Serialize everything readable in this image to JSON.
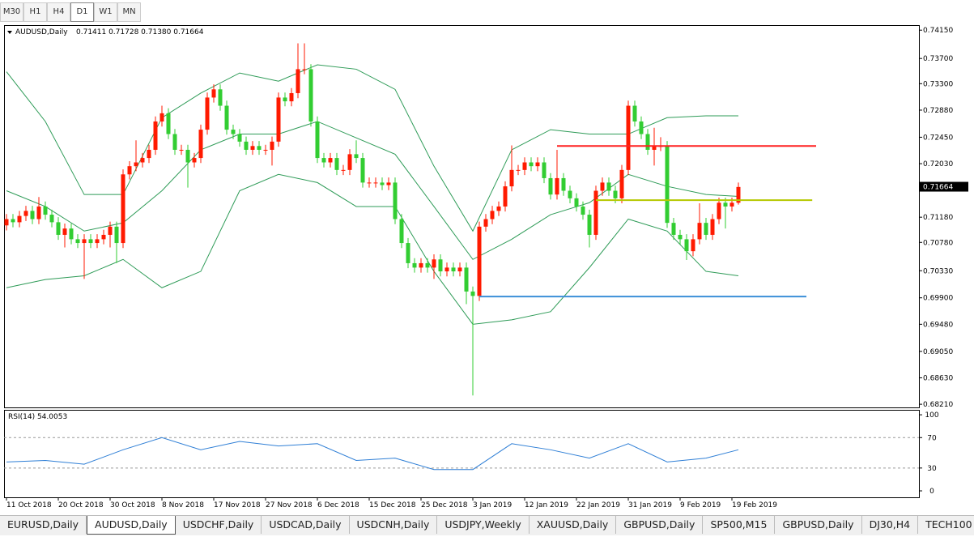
{
  "ui": {
    "timeframes": [
      "M30",
      "H1",
      "H4",
      "D1",
      "W1",
      "MN"
    ],
    "active_timeframe": 3,
    "tabs": [
      "EURUSD,Daily",
      "AUDUSD,Daily",
      "USDCHF,Daily",
      "USDCAD,Daily",
      "USDCNH,Daily",
      "USDJPY,Weekly",
      "XAUUSD,Daily",
      "GBPUSD,Daily",
      "SP500,M15",
      "GBPUSD,Daily",
      "DJ30,H4",
      "TECH100"
    ],
    "active_tab": 1
  },
  "chart_data": {
    "type": "candlestick",
    "title": "AUDUSD,Daily",
    "ohlc_text": "0.71411 0.71728 0.71380 0.71664",
    "up_color": "#ff1a00",
    "down_color": "#32cd32",
    "open": [
      0.7105,
      0.7115,
      0.711,
      0.712,
      0.7128,
      0.7115,
      0.7135,
      0.7122,
      0.711,
      0.709,
      0.71,
      0.7083,
      0.7077,
      0.7083,
      0.7077,
      0.7083,
      0.709,
      0.7103,
      0.7077,
      0.7186,
      0.7199,
      0.7205,
      0.7212,
      0.7225,
      0.727,
      0.7283,
      0.725,
      0.7225,
      0.7225,
      0.7205,
      0.7212,
      0.7257,
      0.7308,
      0.7321,
      0.7295,
      0.7257,
      0.725,
      0.7238,
      0.7225,
      0.7231,
      0.7225,
      0.7225,
      0.7238,
      0.7308,
      0.7302,
      0.7315,
      0.7353,
      0.7353,
      0.727,
      0.7212,
      0.7205,
      0.7212,
      0.7193,
      0.7193,
      0.7218,
      0.7212,
      0.7173,
      0.7173,
      0.7173,
      0.7169,
      0.7173,
      0.7115,
      0.7077,
      0.7045,
      0.7038,
      0.7045,
      0.7038,
      0.7051,
      0.7032,
      0.7038,
      0.7032,
      0.7038,
      0.7,
      0.6993,
      0.7103,
      0.7115,
      0.7128,
      0.7135,
      0.7167,
      0.7193,
      0.7193,
      0.7205,
      0.7199,
      0.7205,
      0.718,
      0.7154,
      0.718,
      0.716,
      0.7148,
      0.7135,
      0.7122,
      0.709,
      0.716,
      0.7173,
      0.716,
      0.7148,
      0.7193,
      0.7295,
      0.727,
      0.725,
      0.7225,
      0.7231,
      0.7231,
      0.7109,
      0.709,
      0.7083,
      0.7064,
      0.7083,
      0.7109,
      0.709,
      0.7115,
      0.7141,
      0.7135,
      0.7141
    ],
    "high": [
      0.7123,
      0.7123,
      0.7128,
      0.7136,
      0.7136,
      0.715,
      0.7143,
      0.713,
      0.7118,
      0.7108,
      0.7108,
      0.7091,
      0.7091,
      0.7091,
      0.7091,
      0.7098,
      0.7111,
      0.7111,
      0.7194,
      0.7207,
      0.724,
      0.722,
      0.7233,
      0.7278,
      0.7295,
      0.7291,
      0.7258,
      0.7233,
      0.7233,
      0.722,
      0.7265,
      0.7316,
      0.7329,
      0.7329,
      0.7303,
      0.7265,
      0.7258,
      0.7246,
      0.7239,
      0.7239,
      0.7233,
      0.7246,
      0.7316,
      0.7316,
      0.7323,
      0.7394,
      0.7394,
      0.7361,
      0.7278,
      0.722,
      0.722,
      0.722,
      0.7201,
      0.7226,
      0.724,
      0.722,
      0.7181,
      0.7181,
      0.7181,
      0.7181,
      0.7181,
      0.7123,
      0.7085,
      0.7053,
      0.7053,
      0.7053,
      0.7059,
      0.7059,
      0.7046,
      0.7046,
      0.7046,
      0.7046,
      0.7008,
      0.7111,
      0.7123,
      0.7136,
      0.7143,
      0.7175,
      0.7232,
      0.7201,
      0.7213,
      0.7213,
      0.7213,
      0.7213,
      0.7188,
      0.7225,
      0.7188,
      0.7168,
      0.7156,
      0.7143,
      0.713,
      0.7168,
      0.7181,
      0.7181,
      0.7168,
      0.7201,
      0.7303,
      0.7303,
      0.7278,
      0.7258,
      0.726,
      0.7245,
      0.7239,
      0.7117,
      0.7098,
      0.7091,
      0.7091,
      0.714,
      0.7117,
      0.7123,
      0.7149,
      0.7149,
      0.7149,
      0.7173
    ],
    "low": [
      0.7097,
      0.7102,
      0.7102,
      0.7112,
      0.7107,
      0.7107,
      0.7114,
      0.7102,
      0.7082,
      0.707,
      0.7075,
      0.7069,
      0.702,
      0.7069,
      0.7069,
      0.7075,
      0.707,
      0.7045,
      0.7069,
      0.7178,
      0.7191,
      0.7197,
      0.7204,
      0.7217,
      0.7262,
      0.7242,
      0.7217,
      0.7217,
      0.7165,
      0.7197,
      0.7204,
      0.7249,
      0.73,
      0.7287,
      0.7249,
      0.7242,
      0.723,
      0.7217,
      0.7217,
      0.7217,
      0.7217,
      0.72,
      0.723,
      0.7294,
      0.7294,
      0.7307,
      0.7345,
      0.7262,
      0.7204,
      0.7197,
      0.7197,
      0.7185,
      0.7185,
      0.7185,
      0.7204,
      0.7165,
      0.7165,
      0.7165,
      0.7161,
      0.7161,
      0.7107,
      0.7069,
      0.7037,
      0.703,
      0.703,
      0.703,
      0.702,
      0.7024,
      0.7024,
      0.7024,
      0.7024,
      0.698,
      0.6835,
      0.6985,
      0.7095,
      0.7107,
      0.712,
      0.7127,
      0.7159,
      0.7185,
      0.7185,
      0.7191,
      0.7191,
      0.7172,
      0.7146,
      0.7146,
      0.7152,
      0.714,
      0.7127,
      0.7114,
      0.707,
      0.7082,
      0.7152,
      0.7152,
      0.714,
      0.714,
      0.7185,
      0.7262,
      0.7242,
      0.7217,
      0.72,
      0.7223,
      0.7101,
      0.7082,
      0.7075,
      0.705,
      0.7056,
      0.7075,
      0.7082,
      0.7082,
      0.7107,
      0.71,
      0.7127,
      0.7138
    ],
    "close": [
      0.7115,
      0.711,
      0.712,
      0.7128,
      0.7115,
      0.7135,
      0.7122,
      0.711,
      0.709,
      0.71,
      0.7083,
      0.7077,
      0.7083,
      0.7077,
      0.7083,
      0.709,
      0.7103,
      0.7077,
      0.7186,
      0.7199,
      0.7205,
      0.7212,
      0.7225,
      0.727,
      0.7283,
      0.725,
      0.7225,
      0.7225,
      0.7205,
      0.7212,
      0.7257,
      0.7308,
      0.7321,
      0.7295,
      0.7257,
      0.725,
      0.7238,
      0.7225,
      0.7231,
      0.7225,
      0.7225,
      0.7238,
      0.7308,
      0.7302,
      0.7315,
      0.7353,
      0.7353,
      0.727,
      0.7212,
      0.7205,
      0.7212,
      0.7193,
      0.7193,
      0.7218,
      0.7212,
      0.7173,
      0.7173,
      0.7173,
      0.7169,
      0.7173,
      0.7115,
      0.7077,
      0.7045,
      0.7038,
      0.7045,
      0.7038,
      0.7051,
      0.7032,
      0.7038,
      0.7032,
      0.7038,
      0.7,
      0.6993,
      0.7103,
      0.7115,
      0.7128,
      0.7135,
      0.7167,
      0.7193,
      0.7193,
      0.7205,
      0.7199,
      0.7205,
      0.718,
      0.7154,
      0.718,
      0.716,
      0.7148,
      0.7135,
      0.7122,
      0.709,
      0.716,
      0.7173,
      0.716,
      0.7148,
      0.7193,
      0.7295,
      0.727,
      0.725,
      0.7225,
      0.7231,
      0.7231,
      0.7109,
      0.709,
      0.7083,
      0.7064,
      0.7083,
      0.7109,
      0.709,
      0.7115,
      0.7141,
      0.7135,
      0.7141,
      0.7166
    ],
    "xlim": [
      -0.375,
      140.875
    ],
    "xticks": [
      {
        "value": 0,
        "label": "11 Oct 2018"
      },
      {
        "value": 8,
        "label": "20 Oct 2018"
      },
      {
        "value": 16,
        "label": "30 Oct 2018"
      },
      {
        "value": 24,
        "label": "8 Nov 2018"
      },
      {
        "value": 32,
        "label": "17 Nov 2018"
      },
      {
        "value": 40,
        "label": "27 Nov 2018"
      },
      {
        "value": 48,
        "label": "6 Dec 2018"
      },
      {
        "value": 56,
        "label": "15 Dec 2018"
      },
      {
        "value": 64,
        "label": "25 Dec 2018"
      },
      {
        "value": 72,
        "label": "3 Jan 2019"
      },
      {
        "value": 80,
        "label": "12 Jan 2019"
      },
      {
        "value": 88,
        "label": "22 Jan 2019"
      },
      {
        "value": 96,
        "label": "31 Jan 2019"
      },
      {
        "value": 104,
        "label": "9 Feb 2019"
      },
      {
        "value": 112,
        "label": "19 Feb 2019"
      }
    ],
    "ylim": [
      0.6816,
      0.7423
    ],
    "yticks": [
      {
        "value": 0.7415,
        "label": "0.74150"
      },
      {
        "value": 0.737,
        "label": "0.73700"
      },
      {
        "value": 0.733,
        "label": "0.73300"
      },
      {
        "value": 0.7288,
        "label": "0.72880"
      },
      {
        "value": 0.7245,
        "label": "0.72450"
      },
      {
        "value": 0.7203,
        "label": "0.72030"
      },
      {
        "value": 0.7118,
        "label": "0.71180"
      },
      {
        "value": 0.7078,
        "label": "0.70780"
      },
      {
        "value": 0.7033,
        "label": "0.70330"
      },
      {
        "value": 0.699,
        "label": "0.69900"
      },
      {
        "value": 0.6948,
        "label": "0.69480"
      },
      {
        "value": 0.6905,
        "label": "0.69050"
      },
      {
        "value": 0.6863,
        "label": "0.68630"
      },
      {
        "value": 0.6821,
        "label": "0.68210"
      }
    ],
    "last_price": {
      "value": 0.71664,
      "label": "0.71664"
    },
    "bands": {
      "color": "#2e9b57",
      "x": [
        0,
        6,
        12,
        18,
        24,
        30,
        36,
        42,
        48,
        54,
        60,
        66,
        72,
        78,
        84,
        90,
        96,
        102,
        108,
        113
      ],
      "upper": [
        0.7349,
        0.727,
        0.7154,
        0.7154,
        0.7276,
        0.7315,
        0.7347,
        0.7334,
        0.736,
        0.7353,
        0.7321,
        0.7199,
        0.7096,
        0.7225,
        0.7257,
        0.725,
        0.725,
        0.7276,
        0.7279,
        0.7279
      ],
      "middle": [
        0.716,
        0.7135,
        0.7096,
        0.7109,
        0.716,
        0.7225,
        0.725,
        0.725,
        0.727,
        0.7244,
        0.7218,
        0.7135,
        0.7051,
        0.7083,
        0.7122,
        0.7141,
        0.7186,
        0.7167,
        0.7154,
        0.7151
      ],
      "lower": [
        0.7006,
        0.7019,
        0.7025,
        0.7051,
        0.7006,
        0.7032,
        0.716,
        0.7186,
        0.7173,
        0.7135,
        0.7135,
        0.7032,
        0.6948,
        0.6955,
        0.6968,
        0.7038,
        0.7115,
        0.7096,
        0.7032,
        0.7025
      ]
    },
    "hlines": [
      {
        "value": 0.7231,
        "from": 85,
        "to": 125,
        "color": "#ff2020"
      },
      {
        "value": 0.7145,
        "from": 91,
        "to": 124.4,
        "color": "#b5c800"
      },
      {
        "value": 0.6992,
        "from": 73,
        "to": 123.5,
        "color": "#3c8fd8"
      }
    ],
    "rsi": {
      "title": "RSI(14) 54.0053",
      "color": "#2f7fd6",
      "ylim": [
        -8.5,
        106.5
      ],
      "yticks": [
        100,
        70,
        30,
        0
      ],
      "levels": [
        70,
        30
      ],
      "x": [
        0,
        6,
        12,
        18,
        24,
        30,
        36,
        42,
        48,
        54,
        60,
        66,
        72,
        78,
        84,
        90,
        96,
        102,
        108,
        113
      ],
      "values": [
        38,
        40,
        35,
        54,
        70,
        54,
        65,
        59,
        62,
        40,
        43,
        28,
        28,
        62,
        54,
        43,
        62,
        38,
        43,
        54.0053
      ]
    }
  }
}
